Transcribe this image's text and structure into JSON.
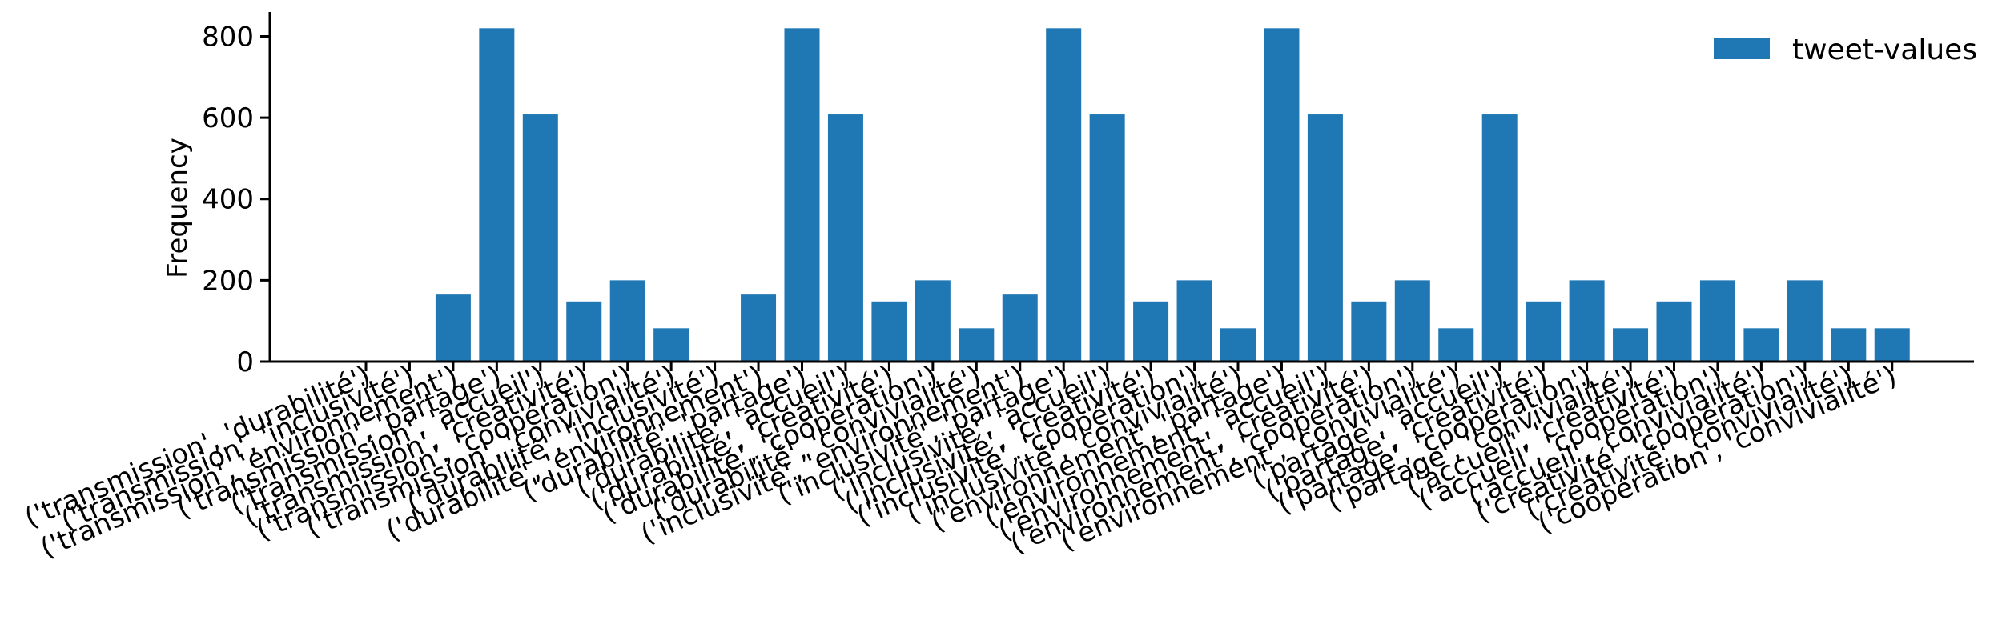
{
  "chart_data": {
    "type": "bar",
    "title": "",
    "xlabel": "",
    "ylabel": "Frequency",
    "ylim": [
      0,
      860
    ],
    "yticks": [
      0,
      200,
      400,
      600,
      800
    ],
    "grid": false,
    "legend": {
      "placement": "top-right",
      "entries": [
        "tweet-values"
      ]
    },
    "series": [
      {
        "name": "tweet-values",
        "color": "#1f77b4",
        "values": [
          0,
          0,
          165,
          820,
          608,
          148,
          200,
          82,
          0,
          165,
          820,
          608,
          148,
          200,
          82,
          165,
          820,
          608,
          148,
          200,
          82,
          820,
          608,
          148,
          200,
          82,
          608,
          148,
          200,
          82,
          148,
          200,
          82,
          200,
          82,
          82
        ]
      }
    ],
    "categories": [
      "('transmission', 'durabilité')",
      "('transmission', 'inclusivité')",
      "('transmission', 'environnement')",
      "('transmission', 'partage')",
      "('transmission', 'accueil')",
      "('transmission', 'créativité')",
      "('transmission', 'coopération')",
      "('transmission', 'convivialité')",
      "('durabilité', 'inclusivité')",
      "('durabilité', 'environnement')",
      "('durabilité', 'partage')",
      "('durabilité', 'accueil')",
      "('durabilité', 'créativité')",
      "('durabilité', 'coopération')",
      "('durabilité', 'convivialité')",
      "('inclusivité', 'environnement')",
      "('inclusivité', 'partage')",
      "('inclusivité', 'accueil')",
      "('inclusivité', 'créativité')",
      "('inclusivité', 'coopération')",
      "('inclusivité', 'convivialité')",
      "('environnement', 'partage')",
      "('environnement', 'accueil')",
      "('environnement', 'créativité')",
      "('environnement', 'coopération')",
      "('environnement', 'convivialité')",
      "('partage', 'accueil')",
      "('partage', 'créativité')",
      "('partage', 'coopération')",
      "('partage', 'convivialité')",
      "('accueil', 'créativité')",
      "('accueil', 'coopération')",
      "('accueil', 'convivialité')",
      "('créativité', 'coopération')",
      "('créativité', 'convivialité')",
      "('coopération', 'convivialité')"
    ]
  }
}
